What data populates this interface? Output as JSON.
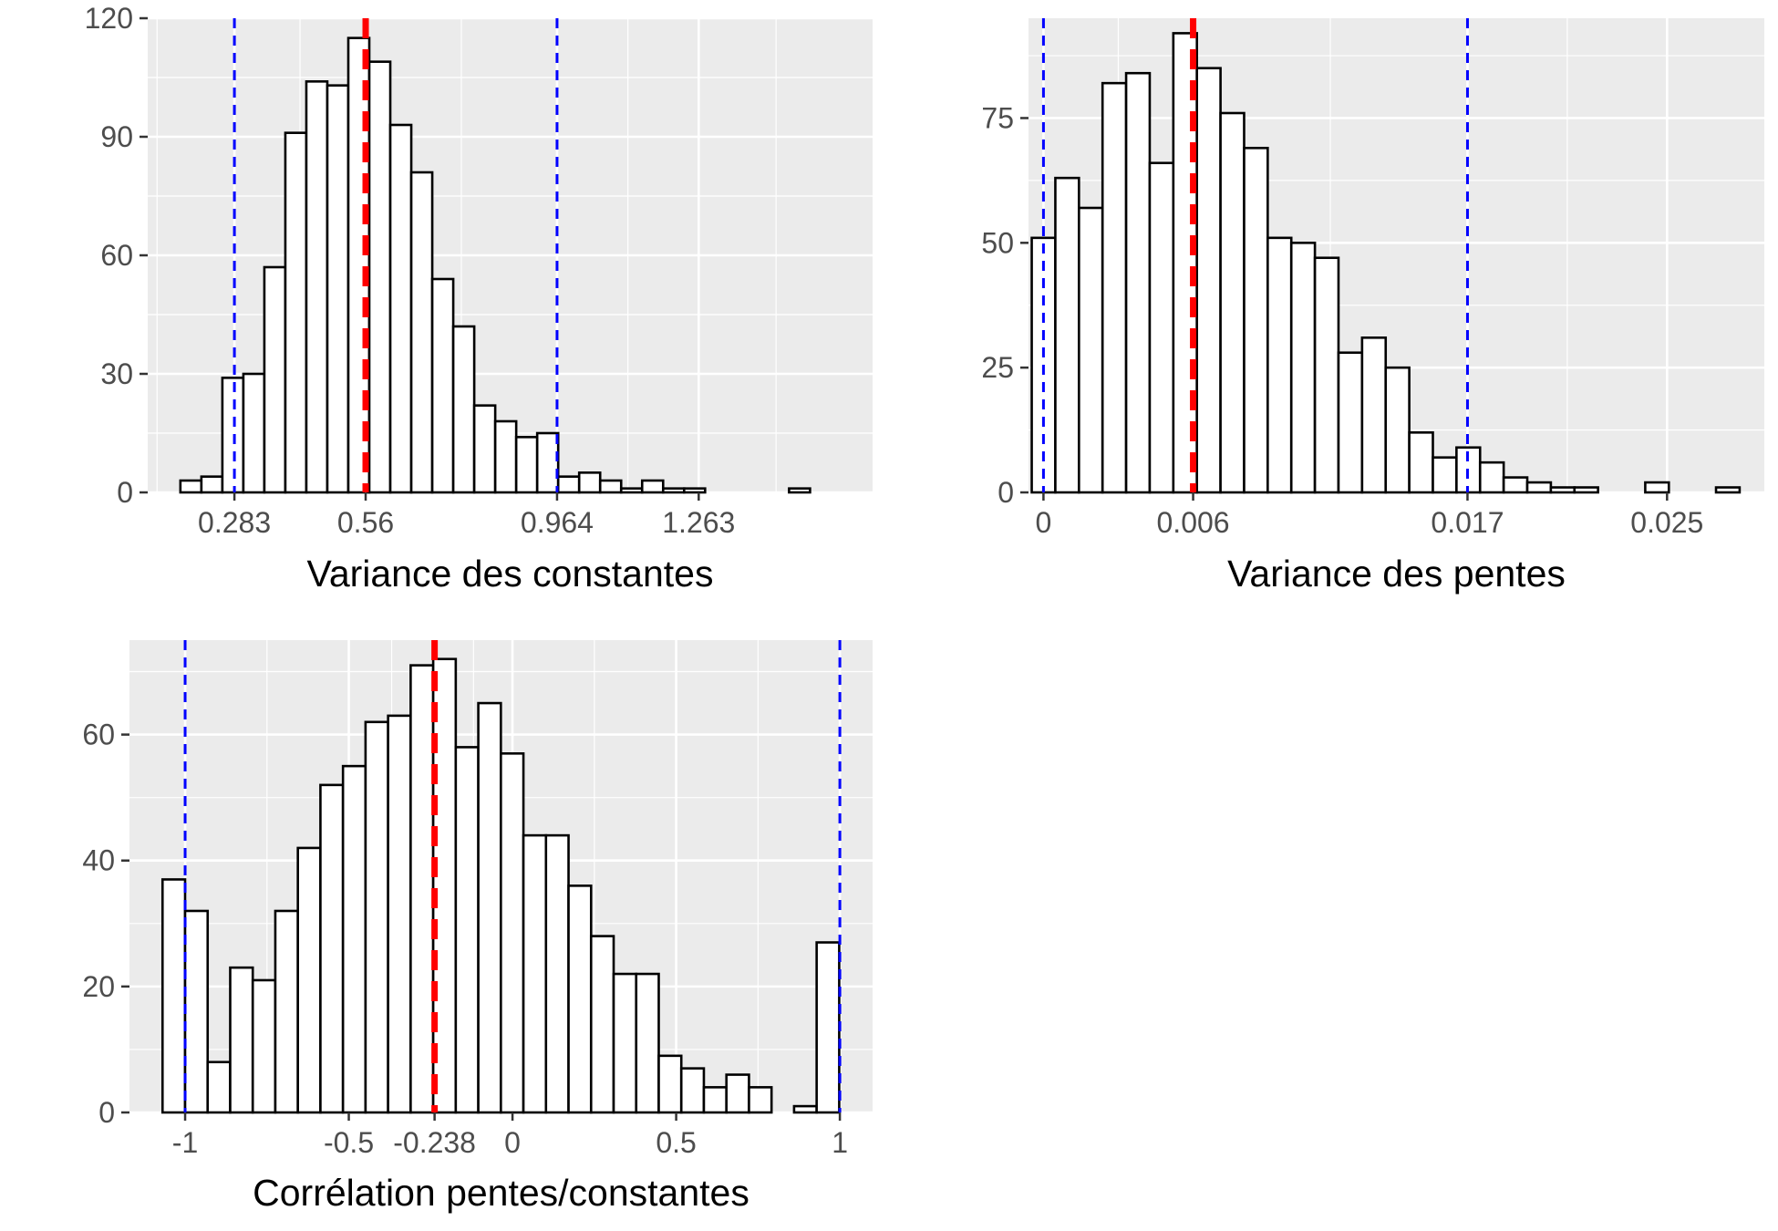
{
  "chart_data": [
    {
      "type": "bar",
      "subtype": "histogram",
      "xlabel": "Variance des constantes",
      "ylabel": "",
      "ylim": [
        0,
        120
      ],
      "xlim": [
        0.1,
        1.63
      ],
      "x_ticks": [
        0.283,
        0.56,
        0.964,
        1.263
      ],
      "x_tick_labels": [
        "0.283",
        "0.56",
        "0.964",
        "1.263"
      ],
      "y_ticks": [
        0,
        30,
        60,
        90,
        120
      ],
      "y_tick_labels": [
        "0",
        "30",
        "60",
        "90",
        "120"
      ],
      "bin_start": 0.169,
      "bin_width": 0.0443,
      "values": [
        3,
        4,
        29,
        30,
        57,
        91,
        104,
        103,
        115,
        109,
        93,
        81,
        54,
        42,
        22,
        18,
        14,
        15,
        4,
        5,
        3,
        1,
        3,
        1,
        1,
        0,
        0,
        0,
        0,
        1
      ],
      "reference_lines": [
        {
          "value": 0.283,
          "color": "#0000ff",
          "style": "dashed"
        },
        {
          "value": 0.56,
          "color": "#ff0000",
          "style": "dashed"
        },
        {
          "value": 0.964,
          "color": "#0000ff",
          "style": "dashed"
        }
      ],
      "grid": true,
      "panel_background": "#ebebeb",
      "bar_fill": "#ffffff",
      "bar_stroke": "#000000"
    },
    {
      "type": "bar",
      "subtype": "histogram",
      "xlabel": "Variance des pentes",
      "ylabel": "",
      "ylim": [
        0,
        95
      ],
      "xlim": [
        -0.0006,
        0.0289
      ],
      "x_ticks": [
        0,
        0.006,
        0.017,
        0.025
      ],
      "x_tick_labels": [
        "0",
        "0.006",
        "0.017",
        "0.025"
      ],
      "y_ticks": [
        0,
        25,
        50,
        75
      ],
      "y_tick_labels": [
        "0",
        "25",
        "50",
        "75"
      ],
      "bin_start": -0.00047,
      "bin_width": 0.000946,
      "values": [
        51,
        63,
        57,
        82,
        84,
        66,
        92,
        85,
        76,
        69,
        51,
        50,
        47,
        28,
        31,
        25,
        12,
        7,
        9,
        6,
        3,
        2,
        1,
        1,
        0,
        0,
        2,
        0,
        0,
        1
      ],
      "reference_lines": [
        {
          "value": 0,
          "color": "#0000ff",
          "style": "dashed"
        },
        {
          "value": 0.006,
          "color": "#ff0000",
          "style": "dashed"
        },
        {
          "value": 0.017,
          "color": "#0000ff",
          "style": "dashed"
        }
      ],
      "grid": true,
      "panel_background": "#ebebeb",
      "bar_fill": "#ffffff",
      "bar_stroke": "#000000"
    },
    {
      "type": "bar",
      "subtype": "histogram",
      "xlabel": "Corrélation pentes/constantes",
      "ylabel": "",
      "ylim": [
        0,
        75
      ],
      "xlim": [
        -1.17,
        1.1
      ],
      "x_ticks": [
        -1,
        -0.5,
        -0.238,
        0,
        0.5,
        1
      ],
      "x_tick_labels": [
        "-1",
        "-0.5",
        "-0.238",
        "0",
        "0.5",
        "1"
      ],
      "y_ticks": [
        0,
        20,
        40,
        60
      ],
      "y_tick_labels": [
        "0",
        "20",
        "40",
        "60"
      ],
      "bin_start": -1.069,
      "bin_width": 0.0689,
      "values": [
        37,
        32,
        8,
        23,
        21,
        32,
        42,
        52,
        55,
        62,
        63,
        71,
        72,
        58,
        65,
        57,
        44,
        44,
        36,
        28,
        22,
        22,
        9,
        7,
        4,
        6,
        4,
        0,
        1,
        27
      ],
      "reference_lines": [
        {
          "value": -1,
          "color": "#0000ff",
          "style": "dashed"
        },
        {
          "value": -0.238,
          "color": "#ff0000",
          "style": "dashed"
        },
        {
          "value": 1,
          "color": "#0000ff",
          "style": "dashed"
        }
      ],
      "grid": true,
      "panel_background": "#ebebeb",
      "bar_fill": "#ffffff",
      "bar_stroke": "#000000"
    }
  ]
}
